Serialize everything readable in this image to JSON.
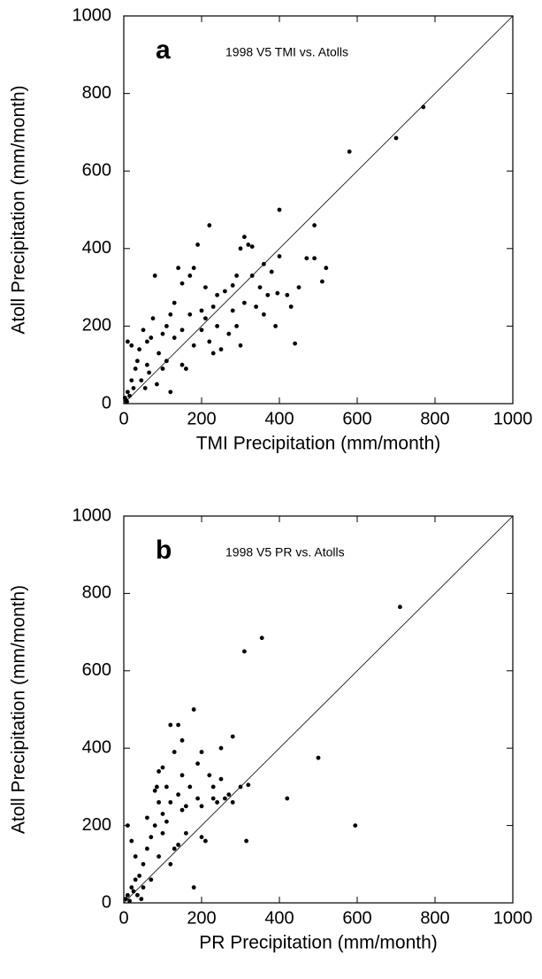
{
  "chart_data": [
    {
      "type": "scatter",
      "panel_label": "a",
      "annotation": "1998 V5 TMI vs. Atolls",
      "x_label": "TMI Precipitation (mm/month)",
      "y_label": "Atoll Precipitation (mm/month)",
      "xlim": [
        0,
        1000
      ],
      "ylim": [
        0,
        1000
      ],
      "xticks": [
        0,
        200,
        400,
        600,
        800,
        1000
      ],
      "yticks": [
        0,
        200,
        400,
        600,
        800,
        1000
      ],
      "color": "#000000",
      "x": [
        770,
        700,
        580,
        400,
        490,
        220,
        520,
        510,
        470,
        490,
        440,
        390,
        395,
        370,
        380,
        350,
        330,
        310,
        320,
        300,
        290,
        280,
        260,
        240,
        230,
        210,
        200,
        190,
        180,
        170,
        150,
        140,
        130,
        120,
        110,
        100,
        80,
        75,
        70,
        60,
        50,
        40,
        30,
        20,
        10,
        5,
        15,
        25,
        8,
        3,
        35,
        45,
        55,
        65,
        90,
        100,
        120,
        150,
        160,
        180,
        200,
        220,
        230,
        250,
        270,
        290,
        300,
        310,
        340,
        360,
        420,
        430,
        400,
        450,
        20,
        10,
        60,
        85,
        130,
        170,
        240,
        280,
        330,
        360,
        210,
        150,
        110
      ],
      "values": [
        765,
        685,
        650,
        500,
        460,
        460,
        350,
        315,
        375,
        375,
        155,
        200,
        285,
        280,
        340,
        300,
        405,
        430,
        410,
        400,
        330,
        305,
        290,
        280,
        250,
        220,
        240,
        410,
        350,
        330,
        310,
        350,
        260,
        230,
        200,
        180,
        330,
        220,
        170,
        160,
        190,
        140,
        90,
        60,
        30,
        10,
        20,
        40,
        5,
        15,
        110,
        60,
        40,
        80,
        130,
        90,
        30,
        100,
        90,
        150,
        190,
        160,
        130,
        140,
        180,
        200,
        150,
        260,
        250,
        230,
        280,
        250,
        380,
        300,
        150,
        160,
        100,
        50,
        170,
        230,
        200,
        240,
        330,
        360,
        300,
        190,
        110
      ]
    },
    {
      "type": "scatter",
      "panel_label": "b",
      "annotation": "1998 V5 PR vs. Atolls",
      "x_label": "PR Precipitation (mm/month)",
      "y_label": "Atoll Precipitation (mm/month)",
      "xlim": [
        0,
        1000
      ],
      "ylim": [
        0,
        1000
      ],
      "xticks": [
        0,
        200,
        400,
        600,
        800,
        1000
      ],
      "yticks": [
        0,
        200,
        400,
        600,
        800,
        1000
      ],
      "color": "#000000",
      "x": [
        710,
        355,
        310,
        180,
        500,
        420,
        595,
        315,
        140,
        120,
        150,
        130,
        100,
        90,
        250,
        280,
        200,
        220,
        270,
        260,
        240,
        230,
        300,
        320,
        200,
        190,
        160,
        150,
        140,
        120,
        110,
        100,
        80,
        70,
        60,
        50,
        40,
        30,
        20,
        10,
        5,
        15,
        25,
        35,
        45,
        10,
        20,
        30,
        80,
        90,
        60,
        110,
        170,
        190,
        230,
        210,
        200,
        180,
        130,
        160,
        120,
        90,
        70,
        50,
        140,
        100,
        85,
        250,
        280,
        150
      ],
      "values": [
        765,
        685,
        650,
        500,
        375,
        270,
        200,
        160,
        460,
        460,
        420,
        390,
        350,
        340,
        400,
        430,
        390,
        330,
        280,
        270,
        260,
        270,
        300,
        305,
        250,
        270,
        250,
        240,
        280,
        260,
        210,
        180,
        200,
        170,
        140,
        100,
        70,
        60,
        40,
        20,
        10,
        5,
        30,
        20,
        10,
        200,
        160,
        120,
        290,
        260,
        220,
        300,
        300,
        360,
        300,
        160,
        170,
        40,
        140,
        180,
        100,
        120,
        60,
        40,
        150,
        230,
        300,
        320,
        260,
        330
      ]
    }
  ]
}
